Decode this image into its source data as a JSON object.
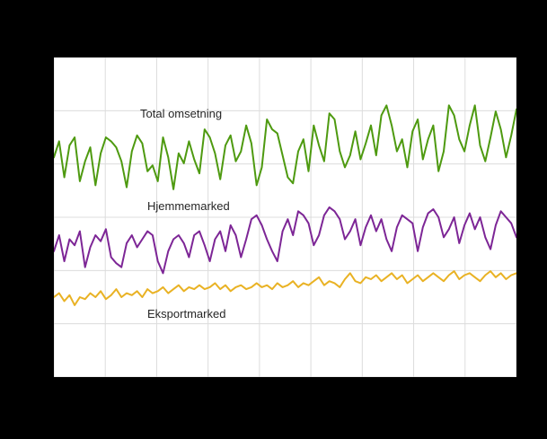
{
  "chart_data": {
    "type": "line",
    "title": "",
    "xlabel": "",
    "ylabel": "",
    "ylim": [
      0,
      160
    ],
    "grid": true,
    "grid_color": "#dcdcdc",
    "plot_background": "#ffffff",
    "outer_background": "#000000",
    "legend_position": "inline-labels",
    "series": [
      {
        "name": "Total omsetning",
        "color": "#4e9a10",
        "values": [
          110,
          118,
          100,
          116,
          120,
          98,
          108,
          115,
          96,
          112,
          120,
          118,
          115,
          108,
          95,
          113,
          121,
          117,
          103,
          106,
          98,
          120,
          110,
          94,
          112,
          107,
          118,
          109,
          102,
          124,
          120,
          112,
          99,
          116,
          121,
          108,
          113,
          126,
          117,
          96,
          105,
          129,
          124,
          122,
          111,
          100,
          97,
          113,
          119,
          103,
          126,
          116,
          108,
          132,
          129,
          113,
          105,
          111,
          123,
          109,
          117,
          126,
          111,
          131,
          136,
          126,
          113,
          119,
          105,
          123,
          129,
          109,
          119,
          126,
          103,
          113,
          136,
          131,
          119,
          113,
          126,
          136,
          116,
          108,
          120,
          133,
          124,
          110,
          121,
          134
        ]
      },
      {
        "name": "Hjemmemarked",
        "color": "#7d2696",
        "values": [
          63,
          71,
          58,
          69,
          66,
          73,
          55,
          65,
          71,
          68,
          74,
          60,
          57,
          55,
          67,
          71,
          65,
          69,
          73,
          71,
          58,
          52,
          63,
          69,
          71,
          67,
          60,
          71,
          73,
          66,
          58,
          69,
          73,
          63,
          76,
          71,
          60,
          69,
          79,
          81,
          76,
          69,
          63,
          58,
          73,
          79,
          71,
          83,
          81,
          77,
          66,
          71,
          81,
          85,
          83,
          79,
          69,
          73,
          79,
          66,
          75,
          81,
          73,
          79,
          69,
          63,
          75,
          81,
          79,
          77,
          63,
          75,
          82,
          84,
          80,
          70,
          74,
          80,
          67,
          76,
          82,
          74,
          80,
          70,
          64,
          76,
          83,
          80,
          77,
          70
        ]
      },
      {
        "name": "Eksportmarked",
        "color": "#e9b224",
        "values": [
          40,
          42,
          38,
          41,
          36,
          40,
          39,
          42,
          40,
          43,
          39,
          41,
          44,
          40,
          42,
          41,
          43,
          40,
          44,
          42,
          43,
          45,
          42,
          44,
          46,
          43,
          45,
          44,
          46,
          44,
          45,
          47,
          44,
          46,
          43,
          45,
          46,
          44,
          45,
          47,
          45,
          46,
          44,
          47,
          45,
          46,
          48,
          45,
          47,
          46,
          48,
          50,
          46,
          48,
          47,
          45,
          49,
          52,
          48,
          47,
          50,
          49,
          51,
          48,
          50,
          52,
          49,
          51,
          47,
          49,
          51,
          48,
          50,
          52,
          50,
          48,
          51,
          53,
          49,
          51,
          52,
          50,
          48,
          51,
          53,
          50,
          52,
          49,
          51,
          52
        ]
      }
    ],
    "x_gridline_count": 9,
    "y_gridline_count": 6
  }
}
